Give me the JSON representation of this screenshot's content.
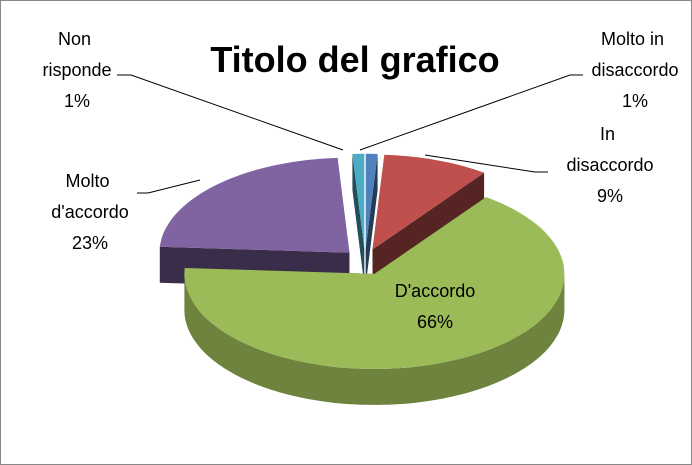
{
  "chart_data": {
    "type": "pie3d",
    "title": "Titolo del grafico",
    "categories": [
      "Molto in disaccordo",
      "In disaccordo",
      "D'accordo",
      "Molto d'accordo",
      "Non risponde"
    ],
    "values": [
      1,
      9,
      66,
      23,
      1
    ],
    "value_labels": [
      "1%",
      "9%",
      "66%",
      "23%",
      "1%"
    ],
    "colors": [
      "#4f81bd",
      "#c0504d",
      "#9bbb59",
      "#8064a2",
      "#4bacc6"
    ]
  }
}
